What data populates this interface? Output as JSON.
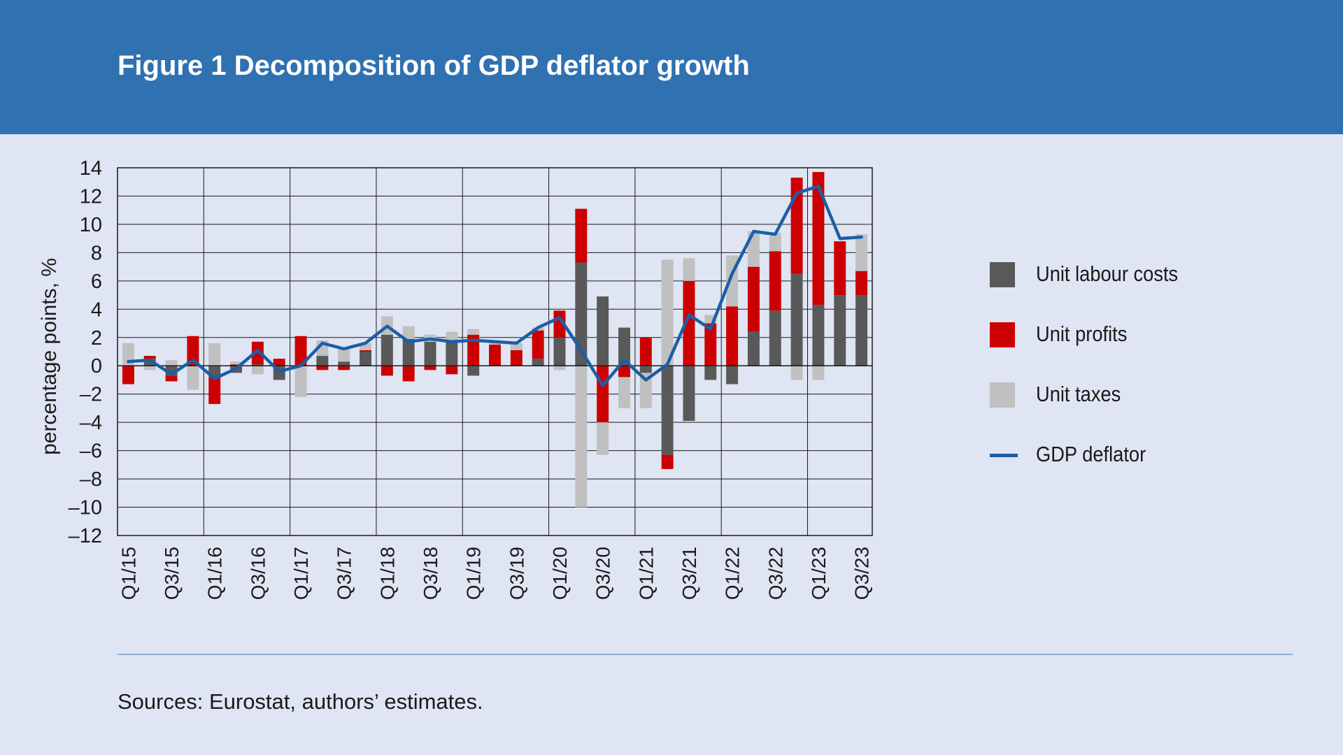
{
  "header": {
    "title": "Figure 1 Decomposition of GDP deflator growth"
  },
  "footer": {
    "source": "Sources: Eurostat, authors’ estimates."
  },
  "colors": {
    "header_bg": "#2f71b1",
    "page_bg": "#dfe5f3",
    "labour": "#595959",
    "profits": "#cc0000",
    "taxes": "#c0c0c0",
    "deflator": "#1b5ea6"
  },
  "chart_data": {
    "type": "bar",
    "stacked": true,
    "ylabel": "percentage points, %",
    "ylim": [
      -12,
      14
    ],
    "yticks": [
      14,
      12,
      10,
      8,
      6,
      4,
      2,
      0,
      -2,
      -4,
      -6,
      -8,
      -10,
      -12
    ],
    "ytick_labels": [
      "14",
      "12",
      "10",
      "8",
      "6",
      "4",
      "2",
      "0",
      "–2",
      "–4",
      "–6",
      "–8",
      "–10",
      "–12"
    ],
    "grid": true,
    "legend_position": "right",
    "categories": [
      "Q1/15",
      "Q2/15",
      "Q3/15",
      "Q4/15",
      "Q1/16",
      "Q2/16",
      "Q3/16",
      "Q4/16",
      "Q1/17",
      "Q2/17",
      "Q3/17",
      "Q4/17",
      "Q1/18",
      "Q2/18",
      "Q3/18",
      "Q4/18",
      "Q1/19",
      "Q2/19",
      "Q3/19",
      "Q4/19",
      "Q1/20",
      "Q2/20",
      "Q3/20",
      "Q4/20",
      "Q1/21",
      "Q2/21",
      "Q3/21",
      "Q4/21",
      "Q1/22",
      "Q2/22",
      "Q3/22",
      "Q4/22",
      "Q1/23",
      "Q2/23",
      "Q3/23"
    ],
    "tick_labels": [
      "Q1/15",
      "Q3/15",
      "Q1/16",
      "Q3/16",
      "Q1/17",
      "Q3/17",
      "Q1/18",
      "Q3/18",
      "Q1/19",
      "Q3/19",
      "Q1/20",
      "Q3/20",
      "Q1/21",
      "Q3/21",
      "Q1/22",
      "Q3/22",
      "Q1/23",
      "Q3/23"
    ],
    "series": [
      {
        "name": "Unit labour costs",
        "type": "bar",
        "values": [
          0,
          0.5,
          -0.7,
          0,
          -0.8,
          -0.5,
          0.1,
          -1.0,
          0,
          0.7,
          0.3,
          1.0,
          2.2,
          1.9,
          1.7,
          1.8,
          -0.7,
          0,
          0,
          0.5,
          2.0,
          7.3,
          4.9,
          2.7,
          -0.5,
          -6.3,
          -3.9,
          -1.0,
          -1.3,
          2.4,
          3.9,
          6.5,
          4.3,
          5.0,
          5.0
        ]
      },
      {
        "name": "Unit profits",
        "type": "bar",
        "values": [
          -1.3,
          0.2,
          -0.4,
          2.1,
          -1.9,
          0.1,
          1.6,
          0.5,
          2.1,
          -0.3,
          -0.3,
          0.1,
          -0.7,
          -1.1,
          -0.3,
          -0.6,
          2.2,
          1.5,
          1.1,
          2.0,
          1.9,
          3.8,
          -4.0,
          -0.8,
          2.0,
          -1.0,
          6.0,
          3.0,
          4.2,
          4.6,
          4.2,
          6.8,
          9.4,
          3.8,
          1.7
        ]
      },
      {
        "name": "Unit taxes",
        "type": "bar",
        "values": [
          1.6,
          -0.3,
          0.4,
          -1.7,
          1.6,
          0.2,
          -0.6,
          0,
          -2.2,
          1.1,
          1.0,
          0.5,
          1.3,
          0.9,
          0.5,
          0.6,
          0.4,
          0.2,
          0.5,
          0.2,
          -0.3,
          -10.0,
          -2.3,
          -2.2,
          -2.5,
          7.5,
          1.6,
          0.6,
          3.6,
          2.5,
          1.3,
          -1.0,
          -1.0,
          0,
          2.6
        ]
      },
      {
        "name": "GDP deflator",
        "type": "line",
        "values": [
          0.3,
          0.4,
          -0.6,
          0.4,
          -0.9,
          -0.2,
          1.1,
          -0.4,
          0.0,
          1.6,
          1.2,
          1.6,
          2.8,
          1.7,
          1.9,
          1.7,
          1.8,
          1.7,
          1.6,
          2.7,
          3.4,
          1.1,
          -1.4,
          0.4,
          -1.0,
          0.1,
          3.6,
          2.6,
          6.5,
          9.5,
          9.3,
          12.2,
          12.7,
          9.0,
          9.1
        ]
      }
    ]
  }
}
